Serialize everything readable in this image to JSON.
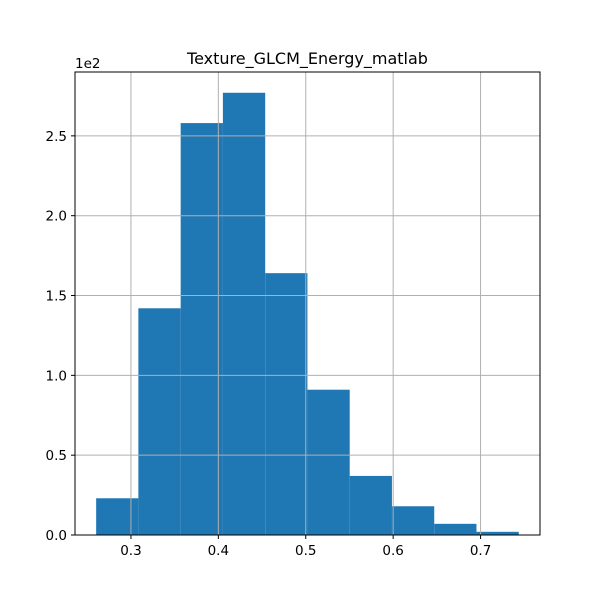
{
  "chart_data": {
    "type": "bar",
    "title": "Texture_GLCM_Energy_matlab",
    "xlabel": "",
    "ylabel": "",
    "offset_label": "1e2",
    "bin_edges": [
      0.2602,
      0.3085,
      0.3569,
      0.4052,
      0.4536,
      0.5019,
      0.5503,
      0.5986,
      0.647,
      0.6953,
      0.7437
    ],
    "values": [
      23,
      142,
      258,
      277,
      164,
      91,
      37,
      18,
      7,
      2
    ],
    "xlim": [
      0.236,
      0.768
    ],
    "ylim": [
      0,
      290
    ],
    "xticks": [
      0.3,
      0.4,
      0.5,
      0.6,
      0.7
    ],
    "xtick_labels": [
      "0.3",
      "0.4",
      "0.5",
      "0.6",
      "0.7"
    ],
    "yticks": [
      0,
      50,
      100,
      150,
      200,
      250
    ],
    "ytick_labels": [
      "0.0",
      "0.5",
      "1.0",
      "1.5",
      "2.0",
      "2.5"
    ],
    "grid": true,
    "bar_color": "#1f77b4",
    "grid_color": "#b0b0b0",
    "axis_color": "#000000"
  }
}
